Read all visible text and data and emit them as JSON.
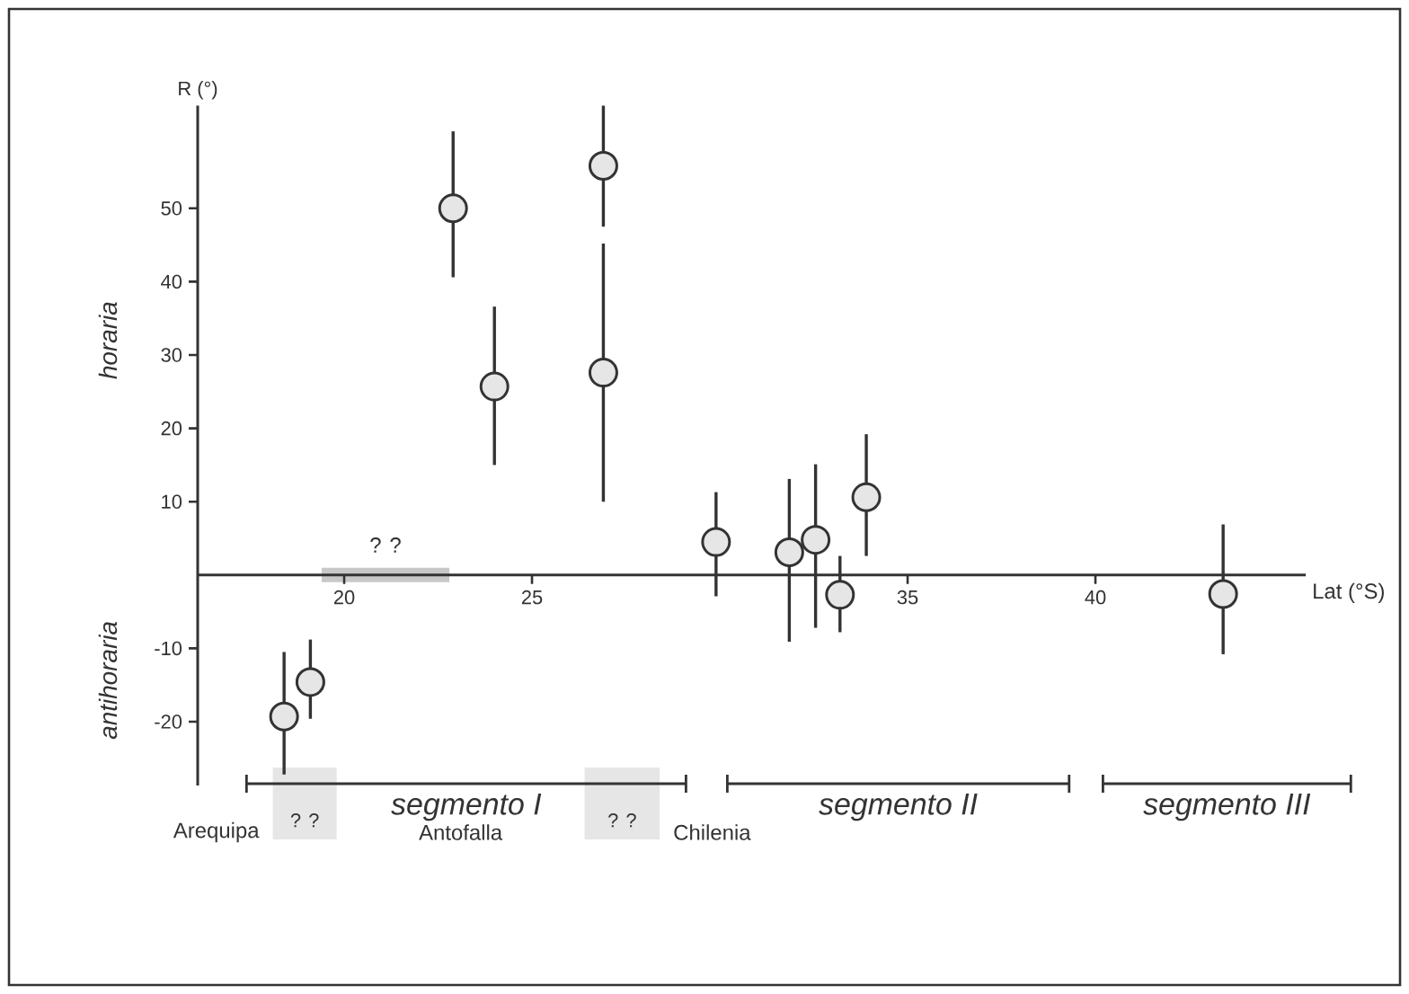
{
  "chart_data": {
    "type": "scatter",
    "xlabel": "Lat (°S)",
    "ylabel": "R (°)",
    "x": [
      18.4,
      19.1,
      22.9,
      24.0,
      26.9,
      26.9,
      29.9,
      31.85,
      32.55,
      33.2,
      33.9,
      43.4
    ],
    "values": [
      -19.3,
      -14.6,
      50,
      25.7,
      55.8,
      27.6,
      4.5,
      3.1,
      4.8,
      -2.7,
      10.6,
      -2.6
    ],
    "errors": [
      [
        -27.2,
        -10.5
      ],
      [
        -19.6,
        -8.8
      ],
      [
        40.6,
        60.5
      ],
      [
        15.0,
        36.6
      ],
      [
        47.5,
        64
      ],
      [
        10,
        45.2
      ],
      [
        -2.9,
        11.3
      ],
      [
        -9.1,
        13.1
      ],
      [
        -7.2,
        15.1
      ],
      [
        -7.8,
        2.6
      ],
      [
        2.6,
        19.2
      ],
      [
        -10.8,
        6.9
      ]
    ],
    "color": "#e6e6e6",
    "xlim": [
      16.1,
      45.6
    ],
    "ylim": [
      -28.7,
      64
    ],
    "xticks": [
      20,
      25,
      35,
      40
    ],
    "yticks": [
      -20,
      -10,
      10,
      20,
      30,
      40,
      50
    ],
    "annotations": [
      "horaria",
      "antihoraria",
      "Arequipa",
      "Antofalla",
      "Chilenia",
      "? ?",
      "? ?",
      "? ?",
      "segmento I",
      "segmento II",
      "segmento III"
    ]
  }
}
